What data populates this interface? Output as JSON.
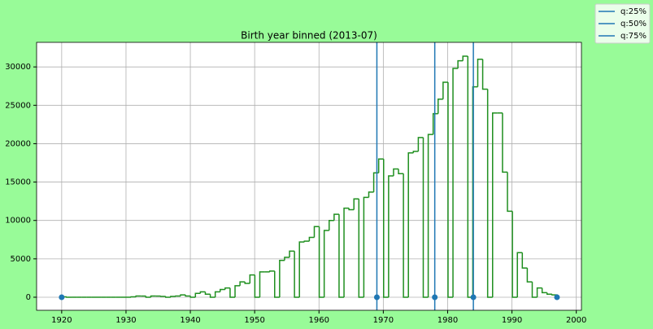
{
  "chart_data": {
    "type": "histogram",
    "title": "Birth year binned (2013-07)",
    "bins": [
      1920,
      1920.77,
      1921.54,
      1922.31,
      1923.08,
      1923.85,
      1924.62,
      1925.39,
      1926.16,
      1926.93,
      1927.7,
      1928.47,
      1929.24,
      1930.01,
      1930.78,
      1931.55,
      1932.32,
      1933.09,
      1933.86,
      1934.63,
      1935.4,
      1936.17,
      1936.94,
      1937.71,
      1938.48,
      1939.25,
      1940.02,
      1940.79,
      1941.56,
      1942.33,
      1943.1,
      1943.87,
      1944.64,
      1945.41,
      1946.18,
      1946.95,
      1947.72,
      1948.49,
      1949.26,
      1950.03,
      1950.8,
      1951.57,
      1952.34,
      1953.11,
      1953.88,
      1954.65,
      1955.42,
      1956.19,
      1956.96,
      1957.73,
      1958.5,
      1959.27,
      1960.04,
      1960.81,
      1961.58,
      1962.35,
      1963.12,
      1963.89,
      1964.66,
      1965.43,
      1966.2,
      1966.97,
      1967.74,
      1968.51,
      1969.28,
      1970.05,
      1970.82,
      1971.59,
      1972.36,
      1973.13,
      1973.9,
      1974.67,
      1975.44,
      1976.21,
      1976.98,
      1977.75,
      1978.52,
      1979.29,
      1980.06,
      1980.83,
      1981.6,
      1982.37,
      1983.14,
      1983.91,
      1984.68,
      1985.45,
      1986.22,
      1986.99,
      1987.76,
      1988.53,
      1989.3,
      1990.07,
      1990.84,
      1991.61,
      1992.38,
      1993.15,
      1993.92,
      1994.69,
      1995.46,
      1996.23,
      1997
    ],
    "values": [
      50,
      0,
      0,
      0,
      0,
      0,
      0,
      0,
      0,
      0,
      0,
      0,
      0,
      0,
      50,
      150,
      150,
      0,
      150,
      150,
      100,
      0,
      100,
      150,
      300,
      150,
      0,
      500,
      700,
      400,
      0,
      700,
      1000,
      1200,
      0,
      1500,
      2000,
      1800,
      2900,
      0,
      3300,
      3300,
      3400,
      0,
      4800,
      5200,
      6000,
      0,
      7200,
      7300,
      7800,
      9200,
      0,
      8700,
      10000,
      10800,
      0,
      11600,
      11400,
      12800,
      0,
      13000,
      13700,
      16200,
      18000,
      0,
      15800,
      16700,
      16100,
      0,
      18800,
      19000,
      20800,
      0,
      21200,
      23900,
      25800,
      28000,
      0,
      29800,
      30800,
      31400,
      0,
      27400,
      31000,
      27100,
      0,
      24000,
      24000,
      16300,
      11200,
      0,
      5800,
      3800,
      2000,
      0,
      1200,
      600,
      400,
      300
    ],
    "color": "#1f8f1f",
    "quantiles": [
      {
        "name": "q:25%",
        "value": 1969,
        "color": "#1f77b4"
      },
      {
        "name": "q:50%",
        "value": 1978,
        "color": "#1f77b4"
      },
      {
        "name": "q:75%",
        "value": 1984,
        "color": "#1f77b4"
      }
    ],
    "points": {
      "x": [
        1920,
        1969,
        1978,
        1984,
        1997
      ],
      "y": [
        0,
        0,
        0,
        0,
        0
      ],
      "color": "#1f77b4"
    },
    "xlim": [
      1916.1,
      2000.8
    ],
    "ylim": [
      -1700,
      33200
    ],
    "xticks": [
      1920,
      1930,
      1940,
      1950,
      1960,
      1970,
      1980,
      1990,
      2000
    ],
    "yticks": [
      0,
      5000,
      10000,
      15000,
      20000,
      25000,
      30000
    ],
    "grid": true,
    "legend": "outside upper right"
  }
}
